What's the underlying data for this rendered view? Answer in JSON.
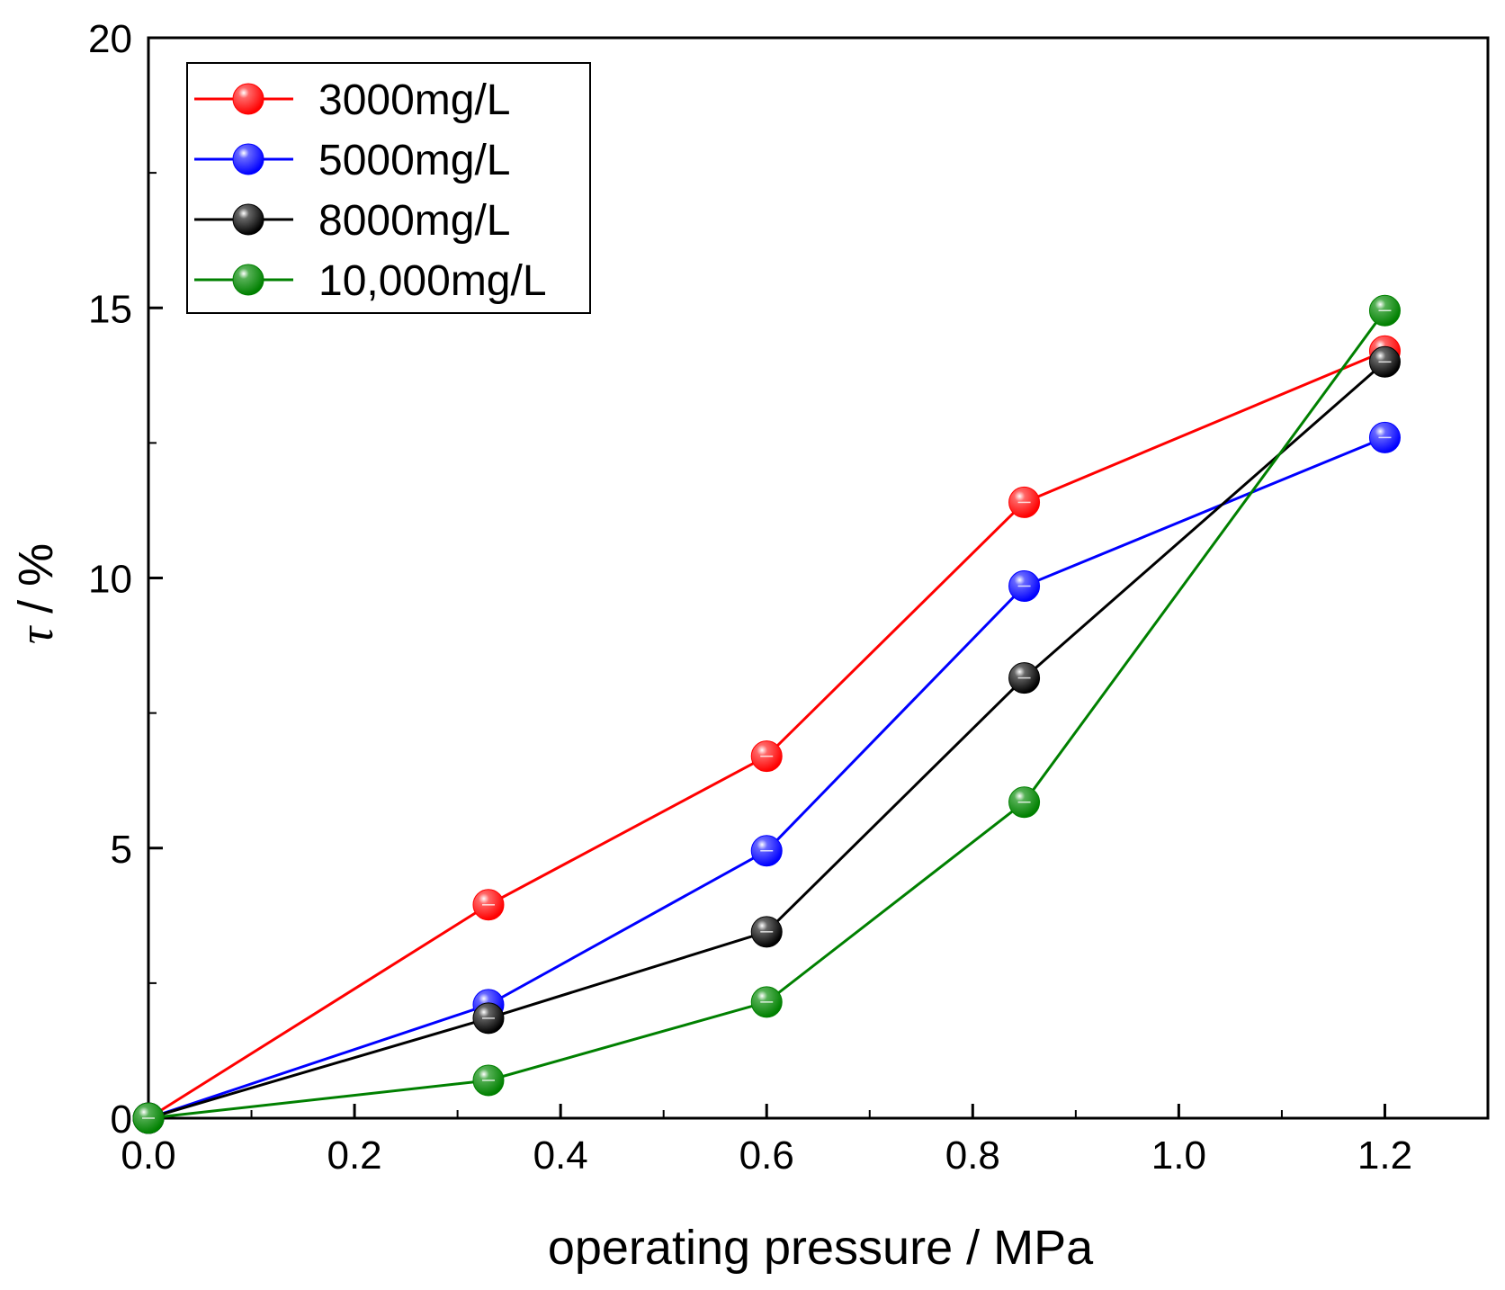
{
  "chart_data": {
    "type": "line",
    "title": "",
    "xlabel": "operating pressure / MPa",
    "ylabel": {
      "symbol": "τ",
      "unit": " / %"
    },
    "xlim": [
      0.0,
      1.3
    ],
    "ylim": [
      0,
      20
    ],
    "xticks": [
      "0.0",
      "0.2",
      "0.4",
      "0.6",
      "0.8",
      "1.0",
      "1.2"
    ],
    "xtick_values": [
      0.0,
      0.2,
      0.4,
      0.6,
      0.8,
      1.0,
      1.2
    ],
    "yticks": [
      "0",
      "5",
      "10",
      "15",
      "20"
    ],
    "ytick_values": [
      0,
      5,
      10,
      15,
      20
    ],
    "legend_position": "top-left",
    "x": [
      0.0,
      0.33,
      0.6,
      0.85,
      1.2
    ],
    "series": [
      {
        "name": "3000mg/L",
        "color": "#ff0000",
        "values": [
          0.0,
          3.95,
          6.7,
          11.4,
          14.2
        ]
      },
      {
        "name": "5000mg/L",
        "color": "#0000ff",
        "values": [
          0.0,
          2.1,
          4.95,
          9.85,
          12.6
        ]
      },
      {
        "name": "8000mg/L",
        "color": "#000000",
        "values": [
          0.0,
          1.85,
          3.45,
          8.15,
          14.0
        ]
      },
      {
        "name": "10,000mg/L",
        "color": "#008000",
        "values": [
          0.0,
          0.7,
          2.15,
          5.85,
          14.95
        ]
      }
    ]
  }
}
